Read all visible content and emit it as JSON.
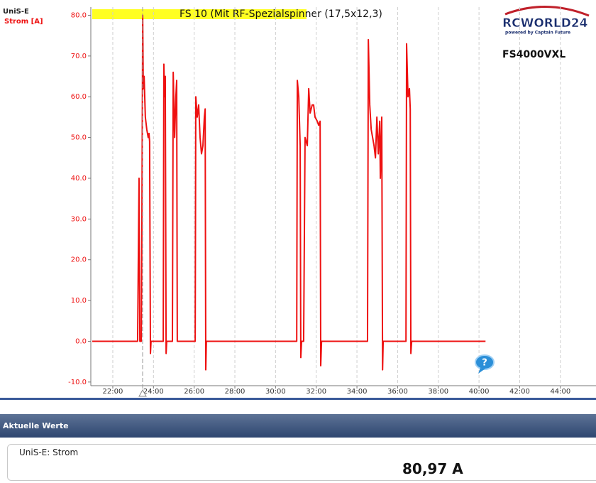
{
  "chart_data": {
    "type": "line",
    "title": "FS 10 (Mit RF-Spezialspinner (17,5x12,3)",
    "device": "UniS-E",
    "annotation": "FS4000VXL",
    "logo": {
      "name": "RCWORLD24",
      "tagline": "powered by Captain Future"
    },
    "x": [
      20.99,
      23.22,
      23.29,
      23.33,
      23.4,
      23.43,
      23.47,
      23.5,
      23.54,
      23.6,
      23.67,
      23.74,
      23.78,
      23.81,
      23.85,
      23.88,
      24.48,
      24.51,
      24.55,
      24.58,
      24.62,
      24.65,
      24.93,
      24.97,
      25.04,
      25.1,
      25.14,
      25.17,
      26.05,
      26.08,
      26.15,
      26.22,
      26.29,
      26.36,
      26.43,
      26.5,
      26.54,
      26.57,
      26.6,
      31.04,
      31.07,
      31.14,
      31.21,
      31.24,
      31.28,
      31.38,
      31.45,
      31.56,
      31.63,
      31.7,
      31.8,
      31.87,
      31.94,
      32.05,
      32.12,
      32.19,
      32.22,
      32.26,
      34.52,
      34.56,
      34.63,
      34.7,
      34.77,
      34.84,
      34.91,
      34.98,
      35.05,
      35.12,
      35.15,
      35.22,
      35.26,
      35.29,
      36.41,
      36.44,
      36.51,
      36.58,
      36.62,
      36.65,
      36.69,
      40.32
    ],
    "series": [
      {
        "name": "Strom [A]",
        "color": "#ee1111",
        "values": [
          0,
          0,
          40,
          0,
          0,
          27,
          80,
          62,
          65,
          55,
          52,
          50,
          51,
          49,
          -3,
          0,
          0,
          68,
          60,
          65,
          -3,
          0,
          0,
          66,
          50,
          60,
          64,
          0,
          0,
          60,
          55,
          58,
          50,
          46,
          48,
          55,
          57,
          -7,
          0,
          0,
          64,
          60,
          48,
          -4,
          0,
          0,
          50,
          48,
          62,
          56,
          58,
          58,
          55,
          54,
          53,
          54,
          -6,
          0,
          0,
          74,
          58,
          52,
          50,
          48,
          45,
          55,
          46,
          54,
          40,
          55,
          -7,
          0,
          0,
          73,
          60,
          62,
          57,
          -3,
          0,
          0
        ]
      }
    ],
    "xlim": [
      20.92,
      45.75
    ],
    "xticks": [
      {
        "value": 22,
        "label": "22:00"
      },
      {
        "value": 24,
        "label": "24:00"
      },
      {
        "value": 26,
        "label": "26:00"
      },
      {
        "value": 28,
        "label": "28:00"
      },
      {
        "value": 30,
        "label": "30:00"
      },
      {
        "value": 32,
        "label": "32:00"
      },
      {
        "value": 34,
        "label": "34:00"
      },
      {
        "value": 36,
        "label": "36:00"
      },
      {
        "value": 38,
        "label": "38:00"
      },
      {
        "value": 40,
        "label": "40:00"
      },
      {
        "value": 42,
        "label": "42:00"
      },
      {
        "value": 44,
        "label": "44:00"
      }
    ],
    "ylim": [
      -10.9,
      82.0
    ],
    "yticks": [
      {
        "value": -10,
        "label": "-10.0"
      },
      {
        "value": 0,
        "label": "0.0"
      },
      {
        "value": 10,
        "label": "10.0"
      },
      {
        "value": 20,
        "label": "20.0"
      },
      {
        "value": 30,
        "label": "30.0"
      },
      {
        "value": 40,
        "label": "40.0"
      },
      {
        "value": 50,
        "label": "50.0"
      },
      {
        "value": 60,
        "label": "60.0"
      },
      {
        "value": 70,
        "label": "70.0"
      },
      {
        "value": 80,
        "label": "80.0"
      }
    ],
    "grid": true
  },
  "panel": {
    "header": "Aktuelle Werte",
    "label": "UniS-E: Strom",
    "value": "80,97 A"
  }
}
